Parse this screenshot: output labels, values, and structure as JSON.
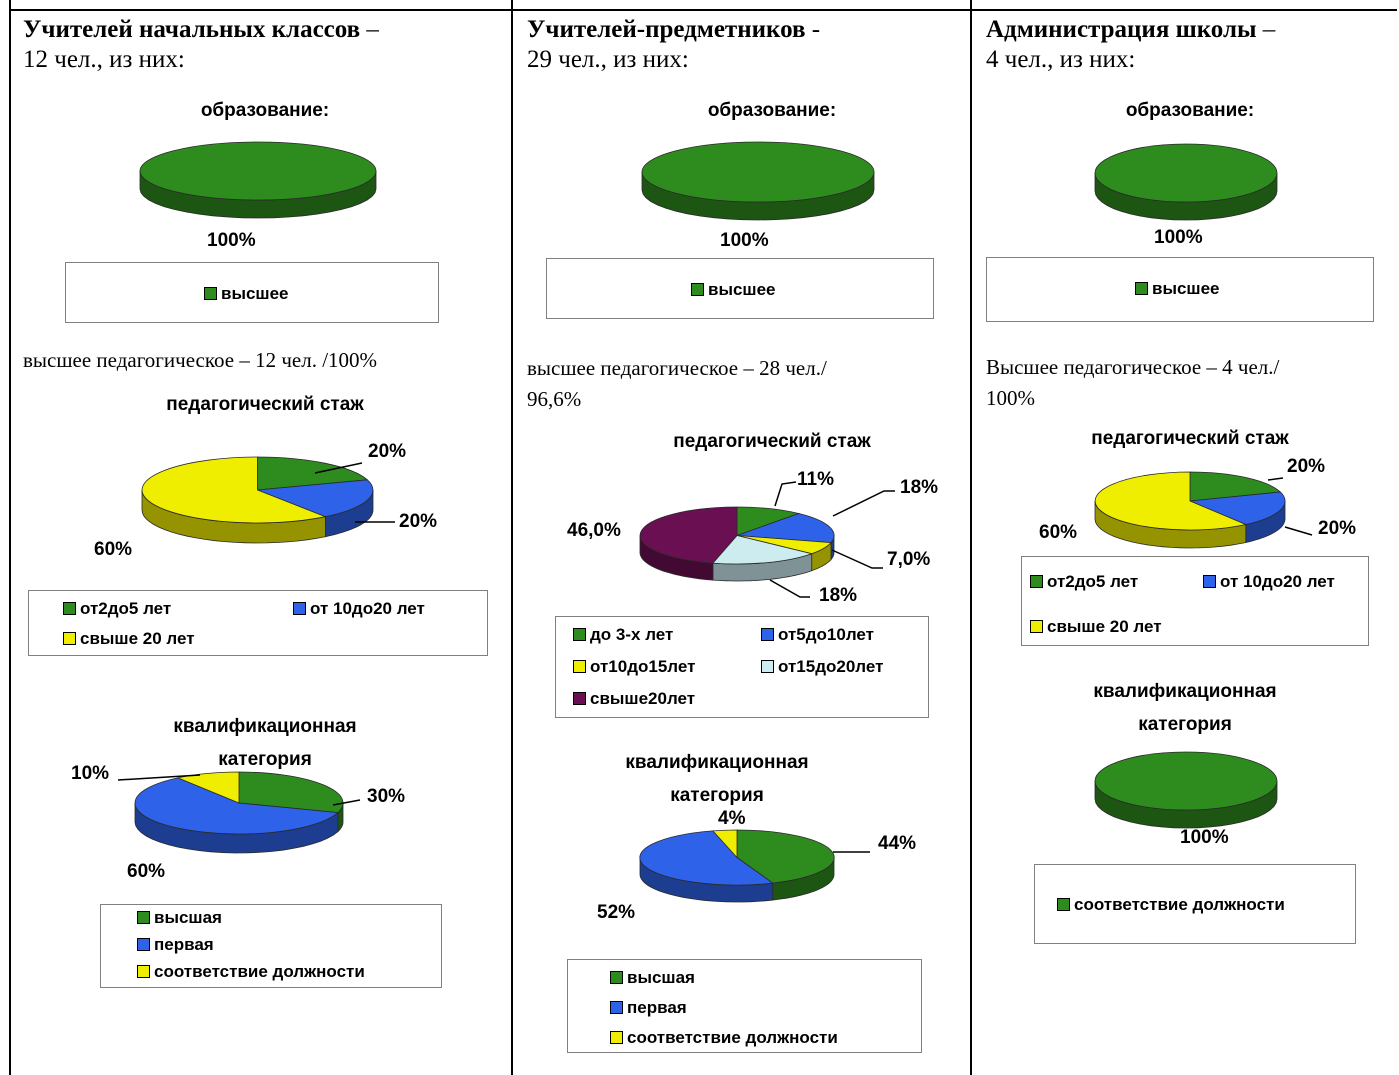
{
  "colors": {
    "green": "#2e8b1e",
    "blue": "#2e62e8",
    "yellow": "#f0ee00",
    "lightblue": "#cdecf0",
    "purple": "#6a0f52"
  },
  "columns": [
    {
      "heading_bold": "Учителей начальных классов",
      "heading_dash": " –",
      "heading_line2": "12 чел.,  из них:",
      "education_title": "образование:",
      "education_label": "100%",
      "education_legend": [
        "высшее"
      ],
      "ped_note": "высшее педагогическое – 12 чел. /100%",
      "stage_title": "педагогический стаж",
      "stage_labels": [
        "20%",
        "20%",
        "60%"
      ],
      "stage_legend": [
        "от2до5 лет",
        "от 10до20 лет",
        "свыше 20 лет"
      ],
      "qual_title_line1": "квалификационная",
      "qual_title_line2": "категория",
      "qual_labels": [
        "30%",
        "60%",
        "10%"
      ],
      "qual_legend": [
        "высшая",
        "первая",
        "соответствие должности"
      ]
    },
    {
      "heading_bold": "Учителей-предметников",
      "heading_dash": "  -",
      "heading_line2": "29 чел., из них:",
      "education_title": "образование:",
      "education_label": "100%",
      "education_legend": [
        "высшее"
      ],
      "ped_note_line1": " высшее педагогическое – 28 чел./",
      "ped_note_line2": "96,6%",
      "stage_title": "педагогический стаж",
      "stage_labels": [
        "11%",
        "18%",
        "7,0%",
        "18%",
        "46,0%"
      ],
      "stage_legend": [
        "до 3-х лет",
        "от5до10лет",
        "от10до15лет",
        "от15до20лет",
        "свыше20лет"
      ],
      "qual_title_line1": "квалификационная",
      "qual_title_line2": "категория",
      "qual_labels": [
        "44%",
        "52%",
        "4%"
      ],
      "qual_legend": [
        "высшая",
        "первая",
        "соответствие должности"
      ]
    },
    {
      "heading_bold": "Администрация школы",
      "heading_dash": " –",
      "heading_line2": "4 чел., из них:",
      "education_title": "образование:",
      "education_label": "100%",
      "education_legend": [
        "высшее"
      ],
      "ped_note_line1": "Высшее педагогическое – 4 чел./",
      "ped_note_line2": "100%",
      "stage_title": "педагогический стаж",
      "stage_labels": [
        "20%",
        "20%",
        "60%"
      ],
      "stage_legend": [
        "от2до5 лет",
        "от 10до20 лет",
        "свыше 20 лет"
      ],
      "qual_title_line1": "квалификационная",
      "qual_title_line2": "категория",
      "qual_labels": [
        "100%"
      ],
      "qual_legend": [
        "соответствие должности"
      ]
    }
  ],
  "chart_data": [
    {
      "type": "pie",
      "title": "образование:",
      "categories": [
        "высшее"
      ],
      "values": [
        100
      ],
      "colors": [
        "green"
      ]
    },
    {
      "type": "pie",
      "title": "педагогический стаж",
      "categories": [
        "от2до5 лет",
        "от 10до20 лет",
        "свыше 20 лет"
      ],
      "values": [
        20,
        20,
        60
      ],
      "colors": [
        "green",
        "blue",
        "yellow"
      ]
    },
    {
      "type": "pie",
      "title": "квалификационная категория",
      "categories": [
        "высшая",
        "первая",
        "соответствие должности"
      ],
      "values": [
        30,
        60,
        10
      ],
      "colors": [
        "green",
        "blue",
        "yellow"
      ]
    },
    {
      "type": "pie",
      "title": "образование:",
      "categories": [
        "высшее"
      ],
      "values": [
        100
      ],
      "colors": [
        "green"
      ]
    },
    {
      "type": "pie",
      "title": "педагогический стаж",
      "categories": [
        "до 3-х лет",
        "от5до10лет",
        "от10до15лет",
        "от15до20лет",
        "свыше20лет"
      ],
      "values": [
        11,
        18,
        7,
        18,
        46
      ],
      "colors": [
        "green",
        "blue",
        "yellow",
        "lightblue",
        "purple"
      ]
    },
    {
      "type": "pie",
      "title": "квалификационная категория",
      "categories": [
        "высшая",
        "первая",
        "соответствие должности"
      ],
      "values": [
        44,
        52,
        4
      ],
      "colors": [
        "green",
        "blue",
        "yellow"
      ]
    },
    {
      "type": "pie",
      "title": "образование:",
      "categories": [
        "высшее"
      ],
      "values": [
        100
      ],
      "colors": [
        "green"
      ]
    },
    {
      "type": "pie",
      "title": "педагогический стаж",
      "categories": [
        "от2до5 лет",
        "от 10до20 лет",
        "свыше 20 лет"
      ],
      "values": [
        20,
        20,
        60
      ],
      "colors": [
        "green",
        "blue",
        "yellow"
      ]
    },
    {
      "type": "pie",
      "title": "квалификационная категория",
      "categories": [
        "соответствие должности"
      ],
      "values": [
        100
      ],
      "colors": [
        "green"
      ]
    }
  ]
}
